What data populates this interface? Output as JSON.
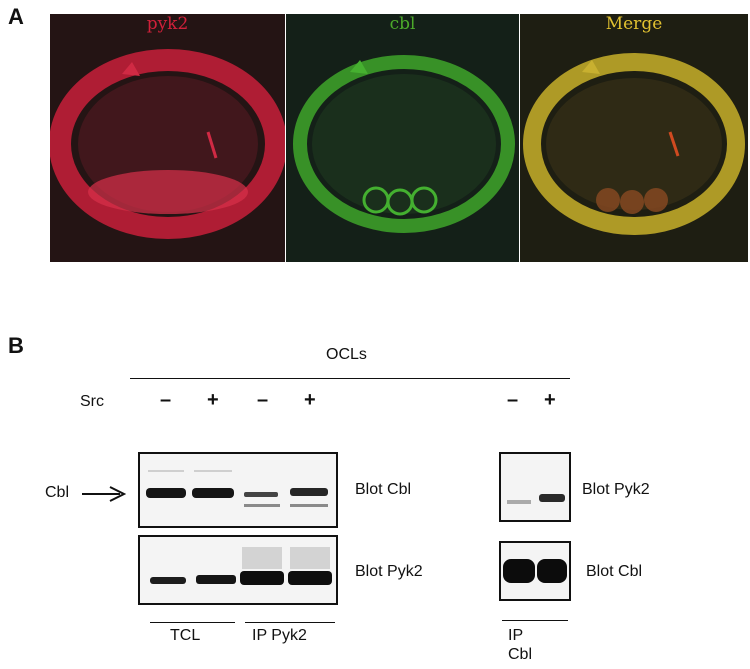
{
  "panel_a": {
    "letter": "A",
    "channels": [
      {
        "label": "pyk2",
        "color": "#d0203a"
      },
      {
        "label": "cbl",
        "color": "#4caa2a"
      },
      {
        "label": "Merge",
        "color": "#e0c030"
      }
    ]
  },
  "panel_b": {
    "letter": "B",
    "group_label": "OCLs",
    "src_label": "Src",
    "signs": [
      "–",
      "+",
      "–",
      "+",
      "–",
      "+"
    ],
    "arrow_label": "Cbl",
    "blot_labels": {
      "left_top": "Blot Cbl",
      "left_bottom": "Blot Pyk2",
      "right_top": "Blot Pyk2",
      "right_bottom": "Blot Cbl"
    },
    "lane_groups": {
      "tcl": "TCL",
      "ip_pyk2": "IP Pyk2",
      "ip_cbl_line1": "IP",
      "ip_cbl_line2": "Cbl"
    }
  }
}
